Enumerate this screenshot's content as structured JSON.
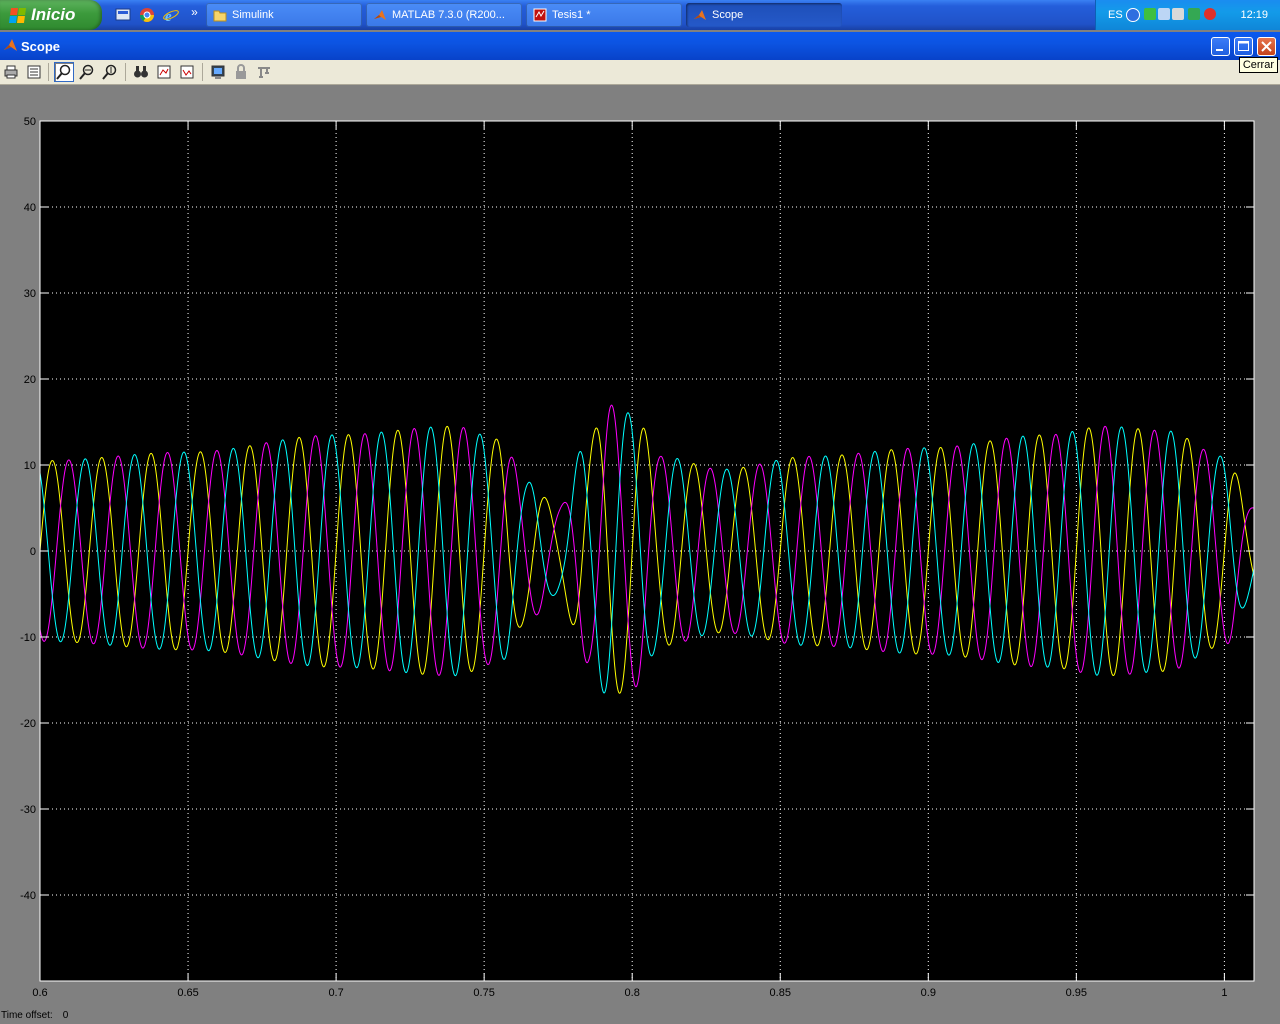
{
  "taskbar": {
    "start_label": "Inicio",
    "quick_launch_icons": [
      "show-desktop-icon",
      "chrome-icon",
      "internet-explorer-icon"
    ],
    "overflow_label": "»",
    "buttons": [
      {
        "label": "Simulink",
        "icon": "folder-icon",
        "active": false
      },
      {
        "label": "MATLAB  7.3.0 (R200...",
        "icon": "matlab-icon",
        "active": false
      },
      {
        "label": "Tesis1 *",
        "icon": "simulink-model-icon",
        "active": false
      },
      {
        "label": "Scope",
        "icon": "matlab-icon",
        "active": true
      }
    ],
    "tray": {
      "language": "ES",
      "clock": "12:19"
    }
  },
  "window": {
    "title": "Scope",
    "tooltip": "Cerrar"
  },
  "toolbar": {
    "tools": [
      "print-icon",
      "parameters-icon",
      "zoom-icon",
      "zoom-x-icon",
      "zoom-y-icon",
      "autoscale-icon",
      "save-axes-icon",
      "restore-axes-icon",
      "floating-scope-icon",
      "lock-axes-icon",
      "signal-selector-icon"
    ]
  },
  "status": {
    "time_offset_label": "Time offset:",
    "time_offset_value": "0"
  },
  "colors": {
    "background": "#000000",
    "grid": "#ffffff",
    "yellow": "#ffff00",
    "magenta": "#ff00ff",
    "cyan": "#00ffff"
  },
  "chart_data": {
    "type": "line",
    "title": "",
    "xlabel": "",
    "ylabel": "",
    "xlim": [
      0.6,
      1.01
    ],
    "ylim": [
      -50,
      50
    ],
    "xticks": [
      "0.6",
      "0.65",
      "0.7",
      "0.75",
      "0.8",
      "0.85",
      "0.9",
      "0.95",
      "1"
    ],
    "yticks": [
      "50",
      "40",
      "30",
      "20",
      "10",
      "0",
      "-10",
      "-20",
      "-30",
      "-40"
    ],
    "grid": true,
    "frequency_hz": 60,
    "series": [
      {
        "color": "#ffff00",
        "phase_deg": 0
      },
      {
        "color": "#ff00ff",
        "phase_deg": -120
      },
      {
        "color": "#00ffff",
        "phase_deg": 120
      }
    ],
    "amplitude_envelope": {
      "t": [
        0.6,
        0.65,
        0.7,
        0.74,
        0.755,
        0.765,
        0.775,
        0.785,
        0.792,
        0.8,
        0.81,
        0.83,
        0.86,
        0.9,
        0.94,
        0.96,
        0.98,
        1.0,
        1.01
      ],
      "amplitude": [
        10.5,
        11.5,
        13.5,
        14.5,
        13,
        8,
        5,
        13,
        17,
        16,
        11,
        9.5,
        11,
        12,
        13.5,
        14.5,
        14,
        11,
        5
      ]
    }
  }
}
